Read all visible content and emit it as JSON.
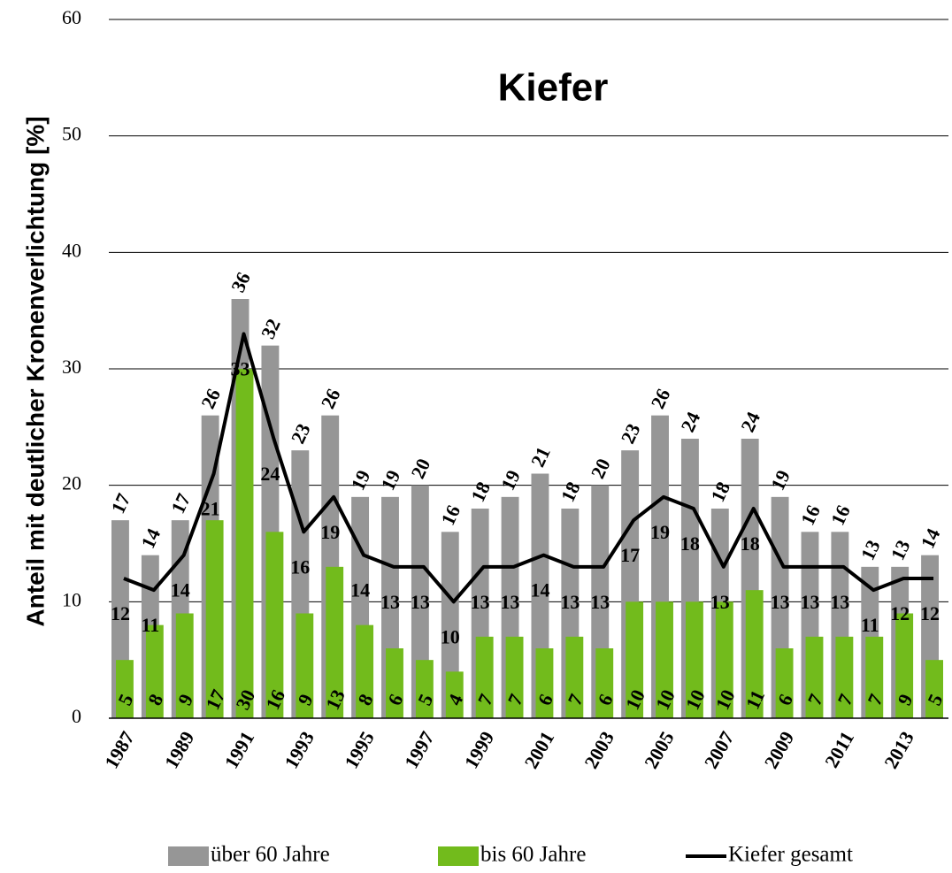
{
  "chart_data": {
    "type": "bar",
    "title": "Kiefer",
    "y_label": "Anteil mit deutlicher Kronenverlichtung [%]",
    "categories": [
      "1987",
      null,
      "1989",
      null,
      "1991",
      null,
      "1993",
      null,
      "1995",
      null,
      "1997",
      null,
      "1999",
      null,
      "2001",
      null,
      "2003",
      null,
      "2005",
      null,
      "2007",
      null,
      "2009",
      null,
      "2011",
      null,
      "2013",
      null
    ],
    "series": [
      {
        "name": "über 60 Jahre",
        "type": "bar",
        "color": "#969696",
        "values": [
          17,
          14,
          17,
          26,
          36,
          32,
          23,
          26,
          19,
          19,
          20,
          16,
          18,
          19,
          21,
          18,
          20,
          23,
          26,
          24,
          18,
          24,
          19,
          16,
          16,
          13,
          13,
          14
        ]
      },
      {
        "name": "bis 60 Jahre",
        "type": "bar",
        "color": "#72bb1c",
        "values": [
          5,
          8,
          9,
          17,
          30,
          16,
          9,
          13,
          8,
          6,
          5,
          4,
          7,
          7,
          6,
          7,
          6,
          10,
          10,
          10,
          10,
          11,
          6,
          7,
          7,
          7,
          9,
          5
        ]
      },
      {
        "name": "Kiefer gesamt",
        "type": "line",
        "color": "#000000",
        "values": [
          12,
          11,
          14,
          21,
          33,
          24,
          16,
          19,
          14,
          13,
          13,
          10,
          13,
          13,
          14,
          13,
          13,
          17,
          19,
          18,
          13,
          18,
          13,
          13,
          13,
          11,
          12,
          12
        ]
      }
    ],
    "ylim": [
      0,
      60
    ],
    "yticks": [
      0,
      10,
      20,
      30,
      40,
      50,
      60
    ],
    "grid": true,
    "legend": "bottom"
  }
}
